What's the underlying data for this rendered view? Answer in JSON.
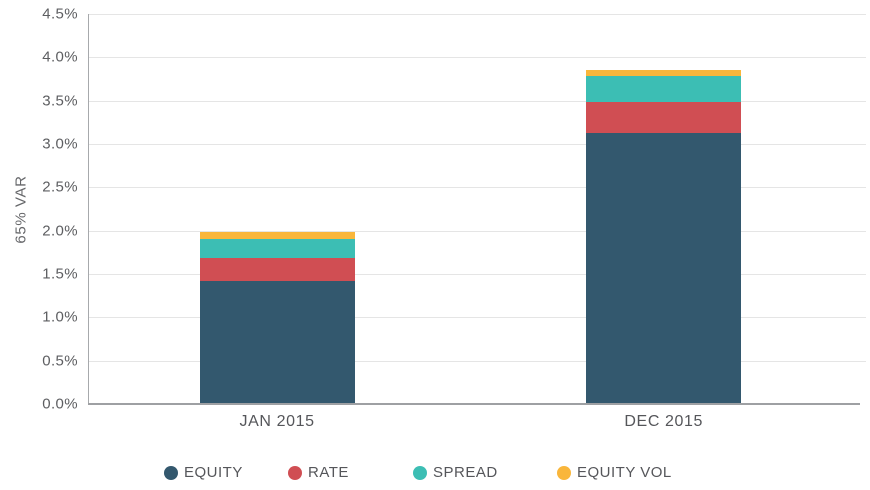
{
  "chart_data": {
    "type": "bar",
    "stacked": true,
    "title": "",
    "xlabel": "",
    "ylabel": "65% VAR",
    "ylim": [
      0,
      4.5
    ],
    "ytick_step": 0.5,
    "yticks": [
      "0.0%",
      "0.5%",
      "1.0%",
      "1.5%",
      "2.0%",
      "2.5%",
      "3.0%",
      "3.5%",
      "4.0%",
      "4.5%"
    ],
    "grid": true,
    "legend_position": "bottom",
    "categories": [
      "JAN 2015",
      "DEC 2015"
    ],
    "series": [
      {
        "name": "EQUITY",
        "color": "#33586E",
        "values": [
          1.42,
          3.13
        ]
      },
      {
        "name": "RATE",
        "color": "#D04E53",
        "values": [
          0.26,
          0.35
        ]
      },
      {
        "name": "SPREAD",
        "color": "#3CBEB4",
        "values": [
          0.22,
          0.3
        ]
      },
      {
        "name": "EQUITY VOL",
        "color": "#F9B63B",
        "values": [
          0.08,
          0.07
        ]
      }
    ],
    "totals": [
      1.98,
      3.85
    ]
  },
  "colors": {
    "gridline": "#e5e5e5",
    "axis": "#9ea0a3",
    "tick_text": "#5d5e61",
    "label_text": "#55565a",
    "background": "#ffffff"
  }
}
